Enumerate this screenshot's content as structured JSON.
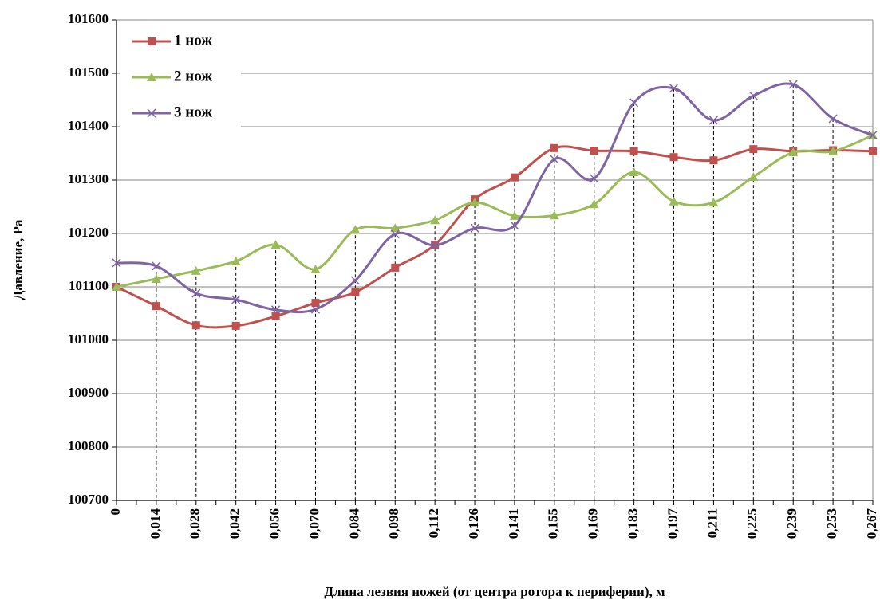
{
  "chart_data": {
    "type": "line",
    "x_label": "Длина лезвия ножей (от центра ротора к периферии), м",
    "y_label": "Давление, Ра",
    "categories": [
      "0",
      "0,014",
      "0,028",
      "0,042",
      "0,056",
      "0,070",
      "0,084",
      "0,098",
      "0,112",
      "0,126",
      "0,141",
      "0,155",
      "0,169",
      "0,183",
      "0,197",
      "0,211",
      "0,225",
      "0,239",
      "0,253",
      "0,267"
    ],
    "series": [
      {
        "name": "1 нож",
        "color": "#c0504d",
        "marker": "square",
        "values": [
          101100,
          101064,
          101028,
          101027,
          101045,
          101070,
          101090,
          101136,
          101179,
          101264,
          101305,
          101360,
          101355,
          101354,
          101343,
          101337,
          101358,
          101354,
          101356,
          101354
        ]
      },
      {
        "name": "2 нож",
        "color": "#9bbb59",
        "marker": "triangle",
        "values": [
          101100,
          101115,
          101130,
          101148,
          101179,
          101133,
          101207,
          101210,
          101225,
          101258,
          101233,
          101234,
          101255,
          101315,
          101260,
          101258,
          101306,
          101352,
          101354,
          101384
        ]
      },
      {
        "name": "3 нож",
        "color": "#8064a2",
        "marker": "x",
        "values": [
          101145,
          101139,
          101088,
          101076,
          101057,
          101058,
          101112,
          101199,
          101178,
          101210,
          101215,
          101339,
          101303,
          101445,
          101472,
          101412,
          101458,
          101479,
          101415,
          101384
        ]
      }
    ],
    "ylim": [
      100700,
      101600
    ],
    "yticks": [
      100700,
      100800,
      100900,
      101000,
      101100,
      101200,
      101300,
      101400,
      101500,
      101600
    ],
    "grid": true,
    "legend": "top-left"
  }
}
